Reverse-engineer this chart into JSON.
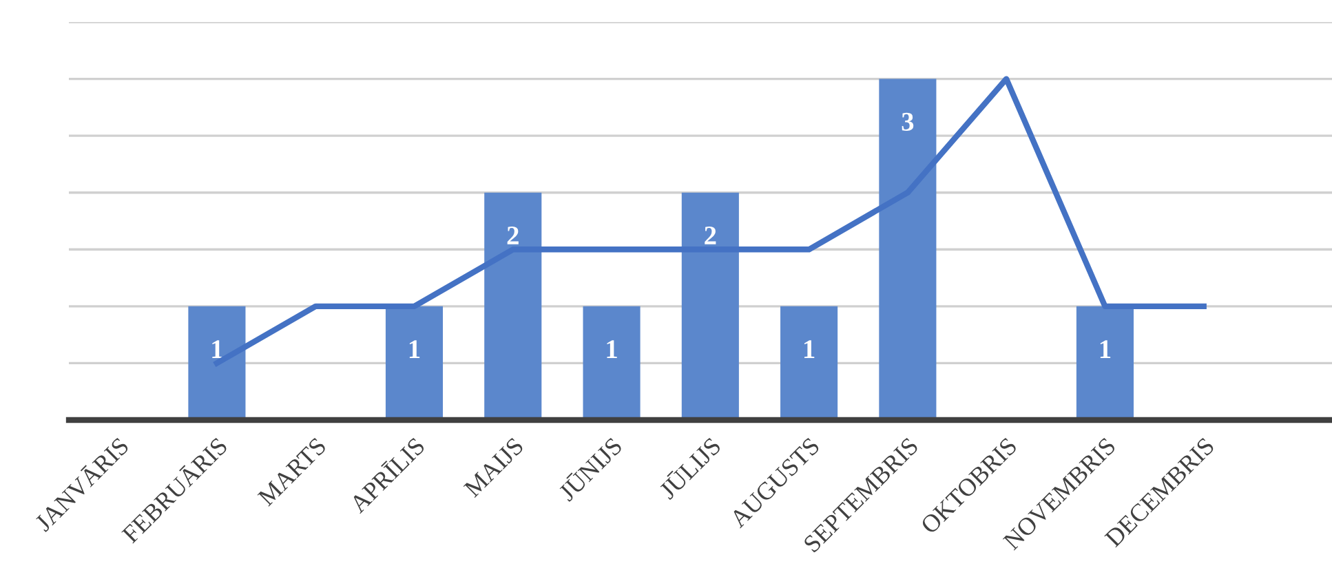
{
  "chart_data": {
    "type": "bar",
    "categories": [
      "JANVĀRIS",
      "FEBRUĀRIS",
      "MARTS",
      "APRĪLIS",
      "MAIJS",
      "JŪNIJS",
      "JŪLIJS",
      "AUGUSTS",
      "SEPTEMBRIS",
      "OKTOBRIS",
      "NOVEMBRIS",
      "DECEMBRIS"
    ],
    "series": [
      {
        "color": "#5b87cc",
        "values": [
          null,
          1,
          null,
          1,
          2,
          1,
          2,
          1,
          3,
          null,
          1,
          null
        ],
        "value_labels": [
          null,
          "1",
          null,
          "1",
          "2",
          "1",
          "2",
          "1",
          "3",
          null,
          "1",
          null
        ]
      },
      {
        "type": "line",
        "color": "#4472c4",
        "values": [
          null,
          0.5,
          1,
          1,
          1.5,
          1.5,
          1.5,
          1.5,
          2,
          3,
          1,
          1
        ]
      }
    ],
    "ylim": [
      0,
      3.5
    ],
    "yticks": [
      {
        "value": 0,
        "label": null
      },
      {
        "value": 0.5,
        "label": null
      },
      {
        "value": 1,
        "label": null
      },
      {
        "value": 1.5,
        "label": null
      },
      {
        "value": 2,
        "label": null
      },
      {
        "value": 2.5,
        "label": null
      },
      {
        "value": 3,
        "label": null
      },
      {
        "value": 3.5,
        "label": null
      }
    ],
    "grid": "y",
    "legend": false,
    "marker": "none",
    "line_style": "solid",
    "tick_labels": "x"
  }
}
